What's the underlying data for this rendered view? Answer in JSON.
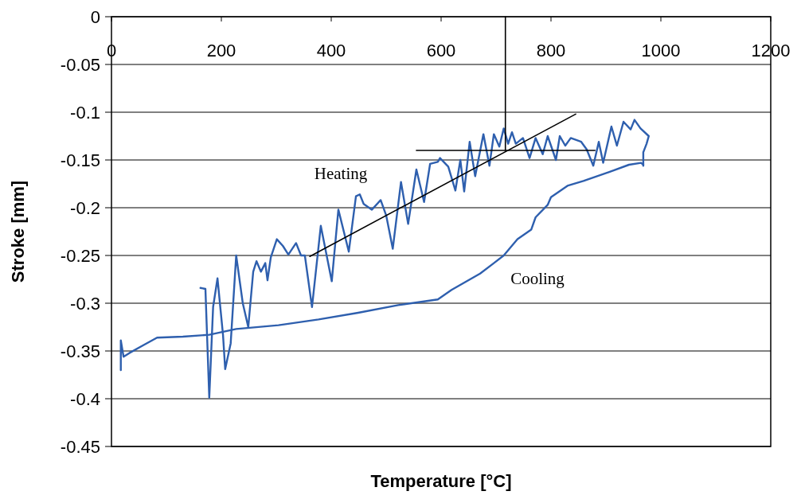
{
  "chart_data": {
    "type": "line",
    "xlabel": "Temperature [°C]",
    "ylabel": "Stroke [mm]",
    "xlim": [
      0,
      1200
    ],
    "xticks": [
      0,
      200,
      400,
      600,
      800,
      1000,
      1200
    ],
    "ylim": [
      -0.45,
      0
    ],
    "yticks": [
      0,
      -0.05,
      -0.1,
      -0.15,
      -0.2,
      -0.25,
      -0.3,
      -0.35,
      -0.4,
      -0.45
    ],
    "grid": "y",
    "marker": "none",
    "line_style": "solid",
    "series": [
      {
        "name": "Heating",
        "color": "#2e5fae",
        "x": [
          162,
          171,
          178,
          185,
          193,
          203,
          207,
          217,
          227,
          239,
          249,
          258,
          264,
          272,
          280,
          284,
          290,
          301,
          312,
          322,
          336,
          345,
          352,
          365,
          381,
          401,
          413,
          432,
          445,
          452,
          459,
          474,
          490,
          500,
          512,
          527,
          540,
          555,
          569,
          580,
          594,
          598,
          613,
          626,
          635,
          642,
          652,
          662,
          677,
          688,
          696,
          706,
          714,
          722,
          729,
          736,
          749,
          761,
          772,
          785,
          794,
          809,
          816,
          826,
          836,
          855,
          865,
          877,
          887,
          895,
          910,
          920,
          932,
          945,
          952,
          963,
          978,
          974,
          968,
          968
        ],
        "values": [
          -0.284,
          -0.285,
          -0.399,
          -0.304,
          -0.274,
          -0.333,
          -0.369,
          -0.342,
          -0.25,
          -0.3,
          -0.325,
          -0.267,
          -0.256,
          -0.267,
          -0.258,
          -0.276,
          -0.252,
          -0.233,
          -0.24,
          -0.249,
          -0.237,
          -0.25,
          -0.25,
          -0.304,
          -0.219,
          -0.277,
          -0.202,
          -0.246,
          -0.188,
          -0.186,
          -0.196,
          -0.202,
          -0.192,
          -0.208,
          -0.243,
          -0.173,
          -0.217,
          -0.16,
          -0.194,
          -0.154,
          -0.152,
          -0.148,
          -0.157,
          -0.182,
          -0.15,
          -0.183,
          -0.131,
          -0.167,
          -0.123,
          -0.156,
          -0.123,
          -0.136,
          -0.117,
          -0.133,
          -0.121,
          -0.133,
          -0.127,
          -0.148,
          -0.127,
          -0.144,
          -0.125,
          -0.15,
          -0.125,
          -0.135,
          -0.127,
          -0.131,
          -0.139,
          -0.156,
          -0.131,
          -0.153,
          -0.115,
          -0.135,
          -0.11,
          -0.118,
          -0.108,
          -0.117,
          -0.125,
          -0.133,
          -0.142,
          -0.156
        ]
      },
      {
        "name": "Cooling",
        "color": "#2e5fae",
        "x": [
          968,
          964,
          942,
          909,
          859,
          830,
          800,
          794,
          772,
          764,
          739,
          714,
          696,
          671,
          619,
          594,
          522,
          449,
          377,
          304,
          227,
          178,
          130,
          83,
          58,
          33,
          22,
          17,
          17
        ],
        "values": [
          -0.155,
          -0.153,
          -0.155,
          -0.162,
          -0.172,
          -0.177,
          -0.189,
          -0.197,
          -0.21,
          -0.223,
          -0.233,
          -0.25,
          -0.258,
          -0.269,
          -0.286,
          -0.296,
          -0.302,
          -0.31,
          -0.317,
          -0.323,
          -0.327,
          -0.333,
          -0.335,
          -0.336,
          -0.344,
          -0.352,
          -0.356,
          -0.339,
          -0.37
        ]
      },
      {
        "color": "#000000",
        "x": [
          361,
          845
        ],
        "values": [
          -0.251,
          -0.102
        ]
      },
      {
        "color": "#000000",
        "x": [
          555,
          880
        ],
        "values": [
          -0.14,
          -0.14
        ]
      },
      {
        "color": "#000000",
        "x": [
          717,
          717
        ],
        "values": [
          0,
          -0.14
        ]
      }
    ]
  }
}
